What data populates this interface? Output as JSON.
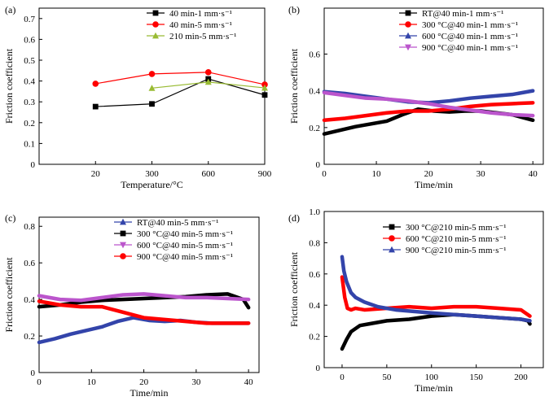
{
  "chart_data": [
    {
      "panel_label": "(a)",
      "type": "line",
      "xlabel": "Temperature/°C",
      "ylabel": "Friction coefficient",
      "xlim": [
        0,
        4
      ],
      "ylim": [
        0,
        0.75
      ],
      "xticks": [
        1,
        2,
        3,
        4
      ],
      "xtick_labels": [
        "20",
        "300",
        "600",
        "900"
      ],
      "yticks": [
        0,
        0.1,
        0.2,
        0.3,
        0.4,
        0.5,
        0.6,
        0.7
      ],
      "ytick_labels": [
        "0",
        "0.1",
        "0.2",
        "0.3",
        "0.4",
        "0.5",
        "0.6",
        "0.7"
      ],
      "legend_position": "top-right",
      "series": [
        {
          "name": "40 min-1 mm·s⁻¹",
          "color": "#000000",
          "marker": "square",
          "x": [
            1,
            2,
            3,
            4
          ],
          "y": [
            0.277,
            0.29,
            0.41,
            0.333
          ]
        },
        {
          "name": "40 min-5 mm·s⁻¹",
          "color": "#ff0000",
          "marker": "circle",
          "x": [
            1,
            2,
            3,
            4
          ],
          "y": [
            0.387,
            0.434,
            0.442,
            0.383
          ]
        },
        {
          "name": "210 min-5 mm·s⁻¹",
          "color": "#99bb33",
          "marker": "triangle",
          "x": [
            2,
            3,
            4
          ],
          "y": [
            0.366,
            0.395,
            0.367
          ]
        }
      ]
    },
    {
      "panel_label": "(b)",
      "type": "line",
      "xlabel": "Time/min",
      "ylabel": "Friction coefficient",
      "xlim": [
        0,
        42
      ],
      "ylim": [
        0,
        0.85
      ],
      "xticks": [
        0,
        10,
        20,
        30,
        40
      ],
      "xtick_labels": [
        "0",
        "10",
        "20",
        "30",
        "40"
      ],
      "yticks": [
        0,
        0.2,
        0.4,
        0.6
      ],
      "ytick_labels": [
        "0",
        "0.2",
        "0.4",
        "0.6"
      ],
      "legend_position": "top-right",
      "series": [
        {
          "name": "RT@40 min-1 mm·s⁻¹",
          "color": "#000000",
          "marker": "square",
          "x": [
            0,
            3,
            6,
            9,
            12,
            15,
            18,
            21,
            24,
            27,
            30,
            33,
            36,
            40
          ],
          "y": [
            0.165,
            0.185,
            0.205,
            0.22,
            0.235,
            0.27,
            0.3,
            0.29,
            0.285,
            0.29,
            0.29,
            0.28,
            0.27,
            0.24
          ]
        },
        {
          "name": "300 °C@40 min-1 mm·s⁻¹",
          "color": "#ff0000",
          "marker": "circle",
          "x": [
            0,
            4,
            8,
            12,
            16,
            20,
            24,
            28,
            32,
            36,
            40
          ],
          "y": [
            0.24,
            0.25,
            0.265,
            0.28,
            0.29,
            0.29,
            0.3,
            0.315,
            0.325,
            0.33,
            0.335
          ]
        },
        {
          "name": "600 °C@40 min-1 mm·s⁻¹",
          "color": "#3344aa",
          "marker": "triangle",
          "x": [
            0,
            4,
            8,
            12,
            16,
            20,
            24,
            28,
            32,
            36,
            40
          ],
          "y": [
            0.395,
            0.385,
            0.37,
            0.355,
            0.34,
            0.335,
            0.345,
            0.36,
            0.37,
            0.38,
            0.4
          ]
        },
        {
          "name": "900 °C@40 min-1 mm·s⁻¹",
          "color": "#bb55cc",
          "marker": "triangle-down",
          "x": [
            0,
            4,
            8,
            12,
            16,
            20,
            24,
            28,
            32,
            36,
            40
          ],
          "y": [
            0.39,
            0.375,
            0.36,
            0.355,
            0.345,
            0.33,
            0.31,
            0.295,
            0.28,
            0.27,
            0.265
          ]
        }
      ]
    },
    {
      "panel_label": "(c)",
      "type": "line",
      "xlabel": "Time/min",
      "ylabel": "Friction coefficient",
      "xlim": [
        0,
        42
      ],
      "ylim": [
        0,
        0.85
      ],
      "xticks": [
        0,
        10,
        20,
        30,
        40
      ],
      "xtick_labels": [
        "0",
        "10",
        "20",
        "30",
        "40"
      ],
      "yticks": [
        0,
        0.2,
        0.4,
        0.6,
        0.8
      ],
      "ytick_labels": [
        "0",
        "0.2",
        "0.4",
        "0.6",
        "0.8"
      ],
      "legend_position": "top-right",
      "series": [
        {
          "name": "RT@40 min-5 mm·s⁻¹",
          "color": "#3344aa",
          "marker": "triangle",
          "x": [
            0,
            3,
            6,
            9,
            12,
            15,
            18,
            21,
            24,
            27,
            30,
            33,
            36,
            40
          ],
          "y": [
            0.165,
            0.185,
            0.21,
            0.23,
            0.25,
            0.28,
            0.3,
            0.285,
            0.28,
            0.285,
            0.275,
            0.27,
            0.27,
            0.27
          ]
        },
        {
          "name": "300 °C@40 min-5 mm·s⁻¹",
          "color": "#000000",
          "marker": "square",
          "x": [
            0,
            4,
            8,
            12,
            16,
            20,
            24,
            28,
            32,
            36,
            39,
            40
          ],
          "y": [
            0.36,
            0.37,
            0.385,
            0.395,
            0.4,
            0.405,
            0.41,
            0.415,
            0.425,
            0.43,
            0.4,
            0.355
          ]
        },
        {
          "name": "600 °C@40 min-5 mm·s⁻¹",
          "color": "#bb55cc",
          "marker": "triangle-down",
          "x": [
            0,
            4,
            8,
            12,
            16,
            20,
            24,
            28,
            32,
            36,
            40
          ],
          "y": [
            0.42,
            0.4,
            0.395,
            0.41,
            0.425,
            0.43,
            0.42,
            0.41,
            0.41,
            0.405,
            0.4
          ]
        },
        {
          "name": "900 °C@40 min-5 mm·s⁻¹",
          "color": "#ff0000",
          "marker": "circle",
          "x": [
            0,
            4,
            8,
            12,
            16,
            20,
            24,
            28,
            32,
            36,
            40
          ],
          "y": [
            0.39,
            0.37,
            0.36,
            0.36,
            0.33,
            0.3,
            0.29,
            0.28,
            0.27,
            0.27,
            0.27
          ]
        }
      ]
    },
    {
      "panel_label": "(d)",
      "type": "line",
      "xlabel": "Time/min",
      "ylabel": "Friction coefficient",
      "xlim": [
        -20,
        225
      ],
      "ylim": [
        0,
        1.0
      ],
      "xticks": [
        0,
        50,
        100,
        150,
        200
      ],
      "xtick_labels": [
        "0",
        "50",
        "100",
        "150",
        "200"
      ],
      "yticks": [
        0,
        0.2,
        0.4,
        0.6,
        0.8,
        1.0
      ],
      "ytick_labels": [
        "0",
        "0.2",
        "0.4",
        "0.6",
        "0.8",
        "1.0"
      ],
      "legend_position": "top-right",
      "series": [
        {
          "name": "300 °C@210 min-5 mm·s⁻¹",
          "color": "#000000",
          "marker": "square",
          "x": [
            0,
            5,
            10,
            20,
            30,
            50,
            75,
            100,
            125,
            150,
            175,
            200,
            208,
            210
          ],
          "y": [
            0.12,
            0.18,
            0.23,
            0.27,
            0.28,
            0.3,
            0.31,
            0.33,
            0.34,
            0.33,
            0.32,
            0.31,
            0.3,
            0.28
          ]
        },
        {
          "name": "600 °C@210 min-5 mm·s⁻¹",
          "color": "#ff0000",
          "marker": "circle",
          "x": [
            0,
            3,
            6,
            10,
            15,
            25,
            50,
            75,
            100,
            125,
            150,
            175,
            200,
            210
          ],
          "y": [
            0.58,
            0.45,
            0.38,
            0.37,
            0.38,
            0.37,
            0.38,
            0.39,
            0.38,
            0.39,
            0.39,
            0.38,
            0.37,
            0.33
          ]
        },
        {
          "name": "900 °C@210 min-5 mm·s⁻¹",
          "color": "#3344aa",
          "marker": "triangle",
          "x": [
            0,
            2,
            5,
            10,
            15,
            25,
            40,
            60,
            80,
            100,
            125,
            150,
            175,
            200,
            210
          ],
          "y": [
            0.71,
            0.62,
            0.55,
            0.48,
            0.45,
            0.42,
            0.39,
            0.37,
            0.36,
            0.35,
            0.34,
            0.33,
            0.32,
            0.31,
            0.3
          ]
        }
      ]
    }
  ]
}
